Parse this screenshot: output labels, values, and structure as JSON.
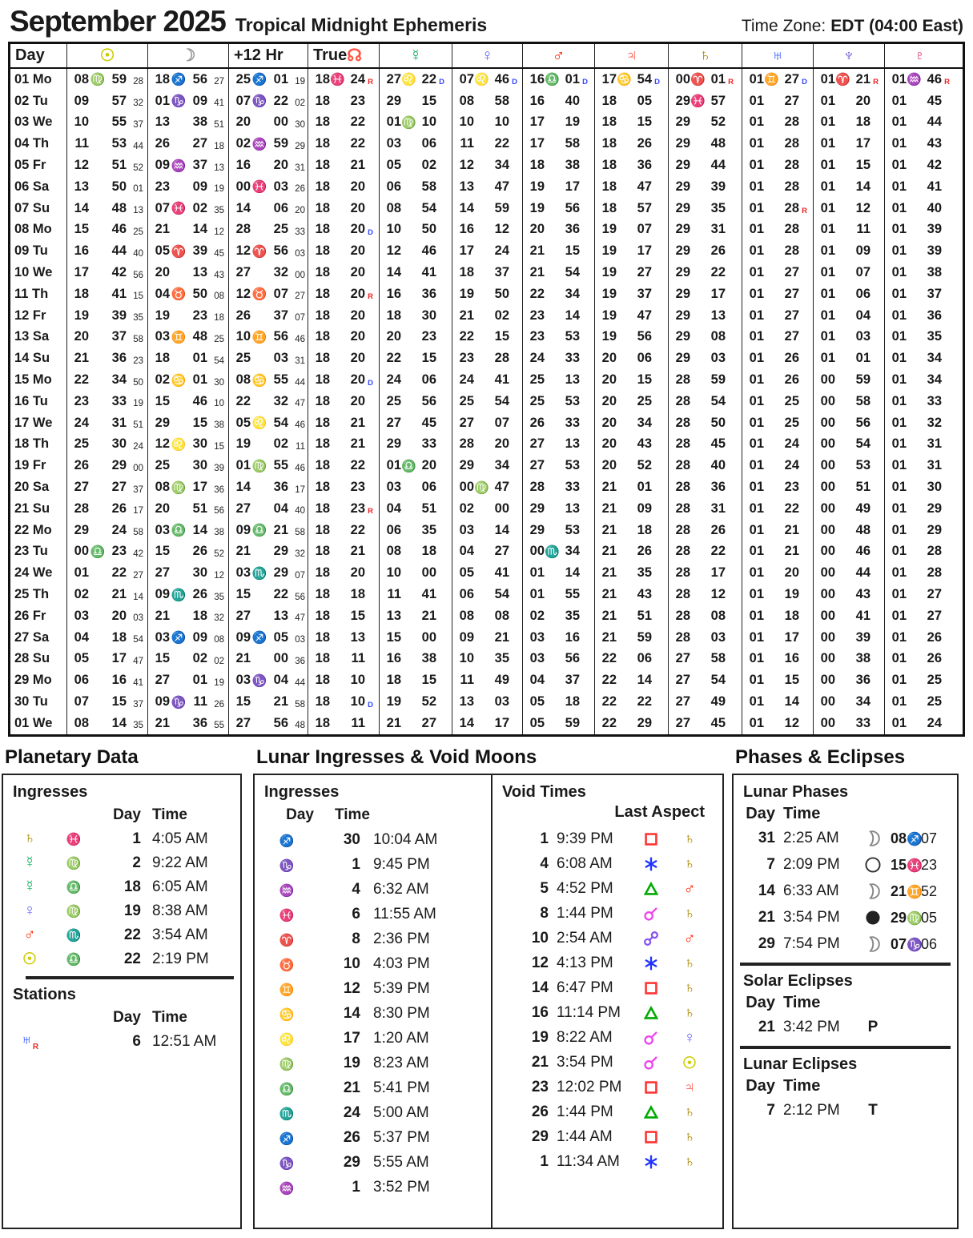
{
  "header": {
    "title": "September 2025",
    "subtitle": "Tropical Midnight Ephemeris",
    "timezone_label": "Time Zone:",
    "timezone_value": "EDT  (04:00 East)"
  },
  "labels": {
    "day": "Day",
    "time": "Time"
  },
  "glyphs": {
    "signs": {
      "ar": {
        "ch": "♈",
        "color": "#ff2200"
      },
      "ta": {
        "ch": "♉",
        "color": "#00aa22"
      },
      "ge": {
        "ch": "♊",
        "color": "#33aa66"
      },
      "cn": {
        "ch": "♋",
        "color": "#3377ee"
      },
      "le": {
        "ch": "♌",
        "color": "#ee3377"
      },
      "vi": {
        "ch": "♍",
        "color": "#3333ff"
      },
      "li": {
        "ch": "♎",
        "color": "#3399ff"
      },
      "sc": {
        "ch": "♏",
        "color": "#9966ee"
      },
      "sg": {
        "ch": "♐",
        "color": "#ee3355"
      },
      "cp": {
        "ch": "♑",
        "color": "#ff7733"
      },
      "aq": {
        "ch": "♒",
        "color": "#3355ff"
      },
      "pi": {
        "ch": "♓",
        "color": "#cc44cc"
      }
    },
    "planets": {
      "sun": {
        "ch": "☉",
        "color": "#cccc00"
      },
      "moon": {
        "ch": "☽",
        "color": "#999999"
      },
      "node": {
        "ch": "☊",
        "color": "#ff5544"
      },
      "mercury": {
        "ch": "☿",
        "color": "#00aa55"
      },
      "venus": {
        "ch": "♀",
        "color": "#6666ff"
      },
      "mars": {
        "ch": "♂",
        "color": "#ff2200"
      },
      "jupiter": {
        "ch": "♃",
        "color": "#ff4433"
      },
      "saturn": {
        "ch": "♄",
        "color": "#aa8800"
      },
      "uranus": {
        "ch": "♅",
        "color": "#2244ff"
      },
      "neptune": {
        "ch": "♆",
        "color": "#6655cc"
      },
      "pluto": {
        "ch": "♇",
        "color": "#dd3366"
      }
    },
    "aspects": {
      "conjunction": {
        "color": "#ee44ee"
      },
      "sextile": {
        "color": "#2233ff"
      },
      "square": {
        "color": "#ff3333"
      },
      "trine": {
        "color": "#00aa00"
      },
      "opposition": {
        "color": "#8855ee"
      }
    },
    "flags": {
      "R": "#ee2222",
      "D": "#3344ff"
    }
  },
  "table": {
    "columns": [
      {
        "key": "day",
        "type": "label",
        "label": "Day"
      },
      {
        "key": "sun",
        "type": "sec",
        "glyph": "sun"
      },
      {
        "key": "moon",
        "type": "sec",
        "glyph": "moon"
      },
      {
        "key": "p12",
        "type": "sec",
        "label": "+12 Hr"
      },
      {
        "key": "node",
        "type": "planet",
        "label": "True",
        "glyph": "node"
      },
      {
        "key": "mercury",
        "type": "planet",
        "glyph": "mercury"
      },
      {
        "key": "venus",
        "type": "planet",
        "glyph": "venus"
      },
      {
        "key": "mars",
        "type": "planet",
        "glyph": "mars"
      },
      {
        "key": "jupiter",
        "type": "planet",
        "glyph": "jupiter"
      },
      {
        "key": "saturn",
        "type": "planet",
        "glyph": "saturn"
      },
      {
        "key": "uranus",
        "type": "planet",
        "glyph": "uranus"
      },
      {
        "key": "neptune",
        "type": "planet",
        "glyph": "neptune"
      },
      {
        "key": "pluto",
        "type": "planet",
        "glyph": "pluto"
      }
    ],
    "rows": [
      {
        "day": "01 Mo",
        "cells": [
          "08 vi 59 28",
          "18 sg 56 27",
          "25 sg 01 19",
          "18 pi 24 R",
          "27 le 22 D",
          "07 le 46 D",
          "16 li 01 D",
          "17 cn 54 D",
          "00 ar 01 R",
          "01 ge 27 D",
          "01 ar 21 R",
          "01 aq 46 R"
        ]
      },
      {
        "day": "02 Tu",
        "cells": [
          "09 - 57 32",
          "01 cp 09 41",
          "07 cp 22 02",
          "18 - 23",
          "29 - 15",
          "08 - 58",
          "16 - 40",
          "18 - 05",
          "29 pi 57",
          "01 - 27",
          "01 - 20",
          "01 - 45"
        ]
      },
      {
        "day": "03 We",
        "cells": [
          "10 - 55 37",
          "13 - 38 51",
          "20 - 00 30",
          "18 - 22",
          "01 vi 10",
          "10 - 10",
          "17 - 19",
          "18 - 15",
          "29 - 52",
          "01 - 28",
          "01 - 18",
          "01 - 44"
        ]
      },
      {
        "day": "04 Th",
        "cells": [
          "11 - 53 44",
          "26 - 27 18",
          "02 aq 59 29",
          "18 - 22",
          "03 - 06",
          "11 - 22",
          "17 - 58",
          "18 - 26",
          "29 - 48",
          "01 - 28",
          "01 - 17",
          "01 - 43"
        ]
      },
      {
        "day": "05 Fr",
        "cells": [
          "12 - 51 52",
          "09 aq 37 13",
          "16 - 20 31",
          "18 - 21",
          "05 - 02",
          "12 - 34",
          "18 - 38",
          "18 - 36",
          "29 - 44",
          "01 - 28",
          "01 - 15",
          "01 - 42"
        ]
      },
      {
        "day": "06 Sa",
        "cells": [
          "13 - 50 01",
          "23 - 09 19",
          "00 pi 03 26",
          "18 - 20",
          "06 - 58",
          "13 - 47",
          "19 - 17",
          "18 - 47",
          "29 - 39",
          "01 - 28",
          "01 - 14",
          "01 - 41"
        ]
      },
      {
        "day": "07 Su",
        "cells": [
          "14 - 48 13",
          "07 pi 02 35",
          "14 - 06 20",
          "18 - 20",
          "08 - 54",
          "14 - 59",
          "19 - 56",
          "18 - 57",
          "29 - 35",
          "01 - 28 R",
          "01 - 12",
          "01 - 40"
        ]
      },
      {
        "day": "08 Mo",
        "cells": [
          "15 - 46 25",
          "21 - 14 12",
          "28 - 25 33",
          "18 - 20 D",
          "10 - 50",
          "16 - 12",
          "20 - 36",
          "19 - 07",
          "29 - 31",
          "01 - 28",
          "01 - 11",
          "01 - 39"
        ]
      },
      {
        "day": "09 Tu",
        "cells": [
          "16 - 44 40",
          "05 ar 39 45",
          "12 ar 56 03",
          "18 - 20",
          "12 - 46",
          "17 - 24",
          "21 - 15",
          "19 - 17",
          "29 - 26",
          "01 - 28",
          "01 - 09",
          "01 - 39"
        ]
      },
      {
        "day": "10 We",
        "cells": [
          "17 - 42 56",
          "20 - 13 43",
          "27 - 32 00",
          "18 - 20",
          "14 - 41",
          "18 - 37",
          "21 - 54",
          "19 - 27",
          "29 - 22",
          "01 - 27",
          "01 - 07",
          "01 - 38"
        ]
      },
      {
        "day": "11 Th",
        "cells": [
          "18 - 41 15",
          "04 ta 50 08",
          "12 ta 07 27",
          "18 - 20 R",
          "16 - 36",
          "19 - 50",
          "22 - 34",
          "19 - 37",
          "29 - 17",
          "01 - 27",
          "01 - 06",
          "01 - 37"
        ]
      },
      {
        "day": "12 Fr",
        "cells": [
          "19 - 39 35",
          "19 - 23 18",
          "26 - 37 07",
          "18 - 20",
          "18 - 30",
          "21 - 02",
          "23 - 14",
          "19 - 47",
          "29 - 13",
          "01 - 27",
          "01 - 04",
          "01 - 36"
        ]
      },
      {
        "day": "13 Sa",
        "cells": [
          "20 - 37 58",
          "03 ge 48 25",
          "10 ge 56 46",
          "18 - 20",
          "20 - 23",
          "22 - 15",
          "23 - 53",
          "19 - 56",
          "29 - 08",
          "01 - 27",
          "01 - 03",
          "01 - 35"
        ]
      },
      {
        "day": "14 Su",
        "cells": [
          "21 - 36 23",
          "18 - 01 54",
          "25 - 03 31",
          "18 - 20",
          "22 - 15",
          "23 - 28",
          "24 - 33",
          "20 - 06",
          "29 - 03",
          "01 - 26",
          "01 - 01",
          "01 - 34"
        ]
      },
      {
        "day": "15 Mo",
        "cells": [
          "22 - 34 50",
          "02 cn 01 30",
          "08 cn 55 44",
          "18 - 20 D",
          "24 - 06",
          "24 - 41",
          "25 - 13",
          "20 - 15",
          "28 - 59",
          "01 - 26",
          "00 - 59",
          "01 - 34"
        ]
      },
      {
        "day": "16 Tu",
        "cells": [
          "23 - 33 19",
          "15 - 46 10",
          "22 - 32 47",
          "18 - 20",
          "25 - 56",
          "25 - 54",
          "25 - 53",
          "20 - 25",
          "28 - 54",
          "01 - 25",
          "00 - 58",
          "01 - 33"
        ]
      },
      {
        "day": "17 We",
        "cells": [
          "24 - 31 51",
          "29 - 15 38",
          "05 le 54 46",
          "18 - 21",
          "27 - 45",
          "27 - 07",
          "26 - 33",
          "20 - 34",
          "28 - 50",
          "01 - 25",
          "00 - 56",
          "01 - 32"
        ]
      },
      {
        "day": "18 Th",
        "cells": [
          "25 - 30 24",
          "12 le 30 15",
          "19 - 02 11",
          "18 - 21",
          "29 - 33",
          "28 - 20",
          "27 - 13",
          "20 - 43",
          "28 - 45",
          "01 - 24",
          "00 - 54",
          "01 - 31"
        ]
      },
      {
        "day": "19 Fr",
        "cells": [
          "26 - 29 00",
          "25 - 30 39",
          "01 vi 55 46",
          "18 - 22",
          "01 li 20",
          "29 - 34",
          "27 - 53",
          "20 - 52",
          "28 - 40",
          "01 - 24",
          "00 - 53",
          "01 - 31"
        ]
      },
      {
        "day": "20 Sa",
        "cells": [
          "27 - 27 37",
          "08 vi 17 36",
          "14 - 36 17",
          "18 - 23",
          "03 - 06",
          "00 vi 47",
          "28 - 33",
          "21 - 01",
          "28 - 36",
          "01 - 23",
          "00 - 51",
          "01 - 30"
        ]
      },
      {
        "day": "21 Su",
        "cells": [
          "28 - 26 17",
          "20 - 51 56",
          "27 - 04 40",
          "18 - 23 R",
          "04 - 51",
          "02 - 00",
          "29 - 13",
          "21 - 09",
          "28 - 31",
          "01 - 22",
          "00 - 49",
          "01 - 29"
        ]
      },
      {
        "day": "22 Mo",
        "cells": [
          "29 - 24 58",
          "03 li 14 38",
          "09 li 21 58",
          "18 - 22",
          "06 - 35",
          "03 - 14",
          "29 - 53",
          "21 - 18",
          "28 - 26",
          "01 - 21",
          "00 - 48",
          "01 - 29"
        ]
      },
      {
        "day": "23 Tu",
        "cells": [
          "00 li 23 42",
          "15 - 26 52",
          "21 - 29 32",
          "18 - 21",
          "08 - 18",
          "04 - 27",
          "00 sc 34",
          "21 - 26",
          "28 - 22",
          "01 - 21",
          "00 - 46",
          "01 - 28"
        ]
      },
      {
        "day": "24 We",
        "cells": [
          "01 - 22 27",
          "27 - 30 12",
          "03 sc 29 07",
          "18 - 20",
          "10 - 00",
          "05 - 41",
          "01 - 14",
          "21 - 35",
          "28 - 17",
          "01 - 20",
          "00 - 44",
          "01 - 28"
        ]
      },
      {
        "day": "25 Th",
        "cells": [
          "02 - 21 14",
          "09 sc 26 35",
          "15 - 22 56",
          "18 - 18",
          "11 - 41",
          "06 - 54",
          "01 - 55",
          "21 - 43",
          "28 - 12",
          "01 - 19",
          "00 - 43",
          "01 - 27"
        ]
      },
      {
        "day": "26 Fr",
        "cells": [
          "03 - 20 03",
          "21 - 18 32",
          "27 - 13 47",
          "18 - 15",
          "13 - 21",
          "08 - 08",
          "02 - 35",
          "21 - 51",
          "28 - 08",
          "01 - 18",
          "00 - 41",
          "01 - 27"
        ]
      },
      {
        "day": "27 Sa",
        "cells": [
          "04 - 18 54",
          "03 sg 09 08",
          "09 sg 05 03",
          "18 - 13",
          "15 - 00",
          "09 - 21",
          "03 - 16",
          "21 - 59",
          "28 - 03",
          "01 - 17",
          "00 - 39",
          "01 - 26"
        ]
      },
      {
        "day": "28 Su",
        "cells": [
          "05 - 17 47",
          "15 - 02 02",
          "21 - 00 36",
          "18 - 11",
          "16 - 38",
          "10 - 35",
          "03 - 56",
          "22 - 06",
          "27 - 58",
          "01 - 16",
          "00 - 38",
          "01 - 26"
        ]
      },
      {
        "day": "29 Mo",
        "cells": [
          "06 - 16 41",
          "27 - 01 19",
          "03 cp 04 44",
          "18 - 10",
          "18 - 15",
          "11 - 49",
          "04 - 37",
          "22 - 14",
          "27 - 54",
          "01 - 15",
          "00 - 36",
          "01 - 25"
        ]
      },
      {
        "day": "30 Tu",
        "cells": [
          "07 - 15 37",
          "09 cp 11 26",
          "15 - 21 58",
          "18 - 10 D",
          "19 - 52",
          "13 - 03",
          "05 - 18",
          "22 - 22",
          "27 - 49",
          "01 - 14",
          "00 - 34",
          "01 - 25"
        ]
      },
      {
        "day": "01 We",
        "cells": [
          "08 - 14 35",
          "21 - 36 55",
          "27 - 56 48",
          "18 - 11",
          "21 - 27",
          "14 - 17",
          "05 - 59",
          "22 - 29",
          "27 - 45",
          "01 - 12",
          "00 - 33",
          "01 - 24"
        ]
      }
    ]
  },
  "planetary": {
    "title": "Planetary Data",
    "ingresses": {
      "heading": "Ingresses",
      "items": [
        {
          "planet": "saturn",
          "sign": "pi",
          "day": "1",
          "time": "4:05 AM"
        },
        {
          "planet": "mercury",
          "sign": "vi",
          "day": "2",
          "time": "9:22 AM"
        },
        {
          "planet": "mercury",
          "sign": "li",
          "day": "18",
          "time": "6:05 AM"
        },
        {
          "planet": "venus",
          "sign": "vi",
          "day": "19",
          "time": "8:38 AM"
        },
        {
          "planet": "mars",
          "sign": "sc",
          "day": "22",
          "time": "3:54 AM"
        },
        {
          "planet": "sun",
          "sign": "li",
          "day": "22",
          "time": "2:19 PM"
        }
      ]
    },
    "stations": {
      "heading": "Stations",
      "items": [
        {
          "planet": "uranus",
          "flag": "R",
          "day": "6",
          "time": "12:51 AM"
        }
      ]
    }
  },
  "lunar": {
    "title": "Lunar Ingresses & Void Moons",
    "ingresses": {
      "heading": "Ingresses",
      "items": [
        {
          "sign": "sg",
          "day": "30",
          "time": "10:04 AM"
        },
        {
          "sign": "cp",
          "day": "1",
          "time": "9:45 PM"
        },
        {
          "sign": "aq",
          "day": "4",
          "time": "6:32 AM"
        },
        {
          "sign": "pi",
          "day": "6",
          "time": "11:55 AM"
        },
        {
          "sign": "ar",
          "day": "8",
          "time": "2:36 PM"
        },
        {
          "sign": "ta",
          "day": "10",
          "time": "4:03 PM"
        },
        {
          "sign": "ge",
          "day": "12",
          "time": "5:39 PM"
        },
        {
          "sign": "cn",
          "day": "14",
          "time": "8:30 PM"
        },
        {
          "sign": "le",
          "day": "17",
          "time": "1:20 AM"
        },
        {
          "sign": "vi",
          "day": "19",
          "time": "8:23 AM"
        },
        {
          "sign": "li",
          "day": "21",
          "time": "5:41 PM"
        },
        {
          "sign": "sc",
          "day": "24",
          "time": "5:00 AM"
        },
        {
          "sign": "sg",
          "day": "26",
          "time": "5:37 PM"
        },
        {
          "sign": "cp",
          "day": "29",
          "time": "5:55 AM"
        },
        {
          "sign": "aq",
          "day": "1",
          "time": "3:52 PM"
        }
      ]
    },
    "voids": {
      "heading": "Void Times",
      "last_aspect_label": "Last Aspect",
      "items": [
        {
          "day": "1",
          "time": "9:39 PM",
          "aspect": "square",
          "planet": "saturn"
        },
        {
          "day": "4",
          "time": "6:08 AM",
          "aspect": "sextile",
          "planet": "saturn"
        },
        {
          "day": "5",
          "time": "4:52 PM",
          "aspect": "trine",
          "planet": "mars"
        },
        {
          "day": "8",
          "time": "1:44 PM",
          "aspect": "conjunction",
          "planet": "saturn"
        },
        {
          "day": "10",
          "time": "2:54 AM",
          "aspect": "opposition",
          "planet": "mars"
        },
        {
          "day": "12",
          "time": "4:13 PM",
          "aspect": "sextile",
          "planet": "saturn"
        },
        {
          "day": "14",
          "time": "6:47 PM",
          "aspect": "square",
          "planet": "saturn"
        },
        {
          "day": "16",
          "time": "11:14 PM",
          "aspect": "trine",
          "planet": "saturn"
        },
        {
          "day": "19",
          "time": "8:22 AM",
          "aspect": "conjunction",
          "planet": "venus"
        },
        {
          "day": "21",
          "time": "3:54 PM",
          "aspect": "conjunction",
          "planet": "sun"
        },
        {
          "day": "23",
          "time": "12:02 PM",
          "aspect": "square",
          "planet": "jupiter"
        },
        {
          "day": "26",
          "time": "1:44 PM",
          "aspect": "trine",
          "planet": "saturn"
        },
        {
          "day": "29",
          "time": "1:44 AM",
          "aspect": "square",
          "planet": "saturn"
        },
        {
          "day": "1",
          "time": "11:34 AM",
          "aspect": "sextile",
          "planet": "saturn"
        }
      ]
    }
  },
  "phases": {
    "title": "Phases & Eclipses",
    "lunar_phases": {
      "heading": "Lunar Phases",
      "items": [
        {
          "day": "31",
          "time": "2:25 AM",
          "phase": "quarter",
          "pos": "08 sg 07"
        },
        {
          "day": "7",
          "time": "2:09 PM",
          "phase": "full",
          "pos": "15 pi 23"
        },
        {
          "day": "14",
          "time": "6:33 AM",
          "phase": "quarter",
          "pos": "21 ge 52"
        },
        {
          "day": "21",
          "time": "3:54 PM",
          "phase": "new",
          "pos": "29 vi 05"
        },
        {
          "day": "29",
          "time": "7:54 PM",
          "phase": "quarter",
          "pos": "07 cp 06"
        }
      ]
    },
    "solar_eclipses": {
      "heading": "Solar Eclipses",
      "items": [
        {
          "day": "21",
          "time": "3:42 PM",
          "type": "P"
        }
      ]
    },
    "lunar_eclipses": {
      "heading": "Lunar Eclipses",
      "items": [
        {
          "day": "7",
          "time": "2:12 PM",
          "type": "T"
        }
      ]
    }
  }
}
